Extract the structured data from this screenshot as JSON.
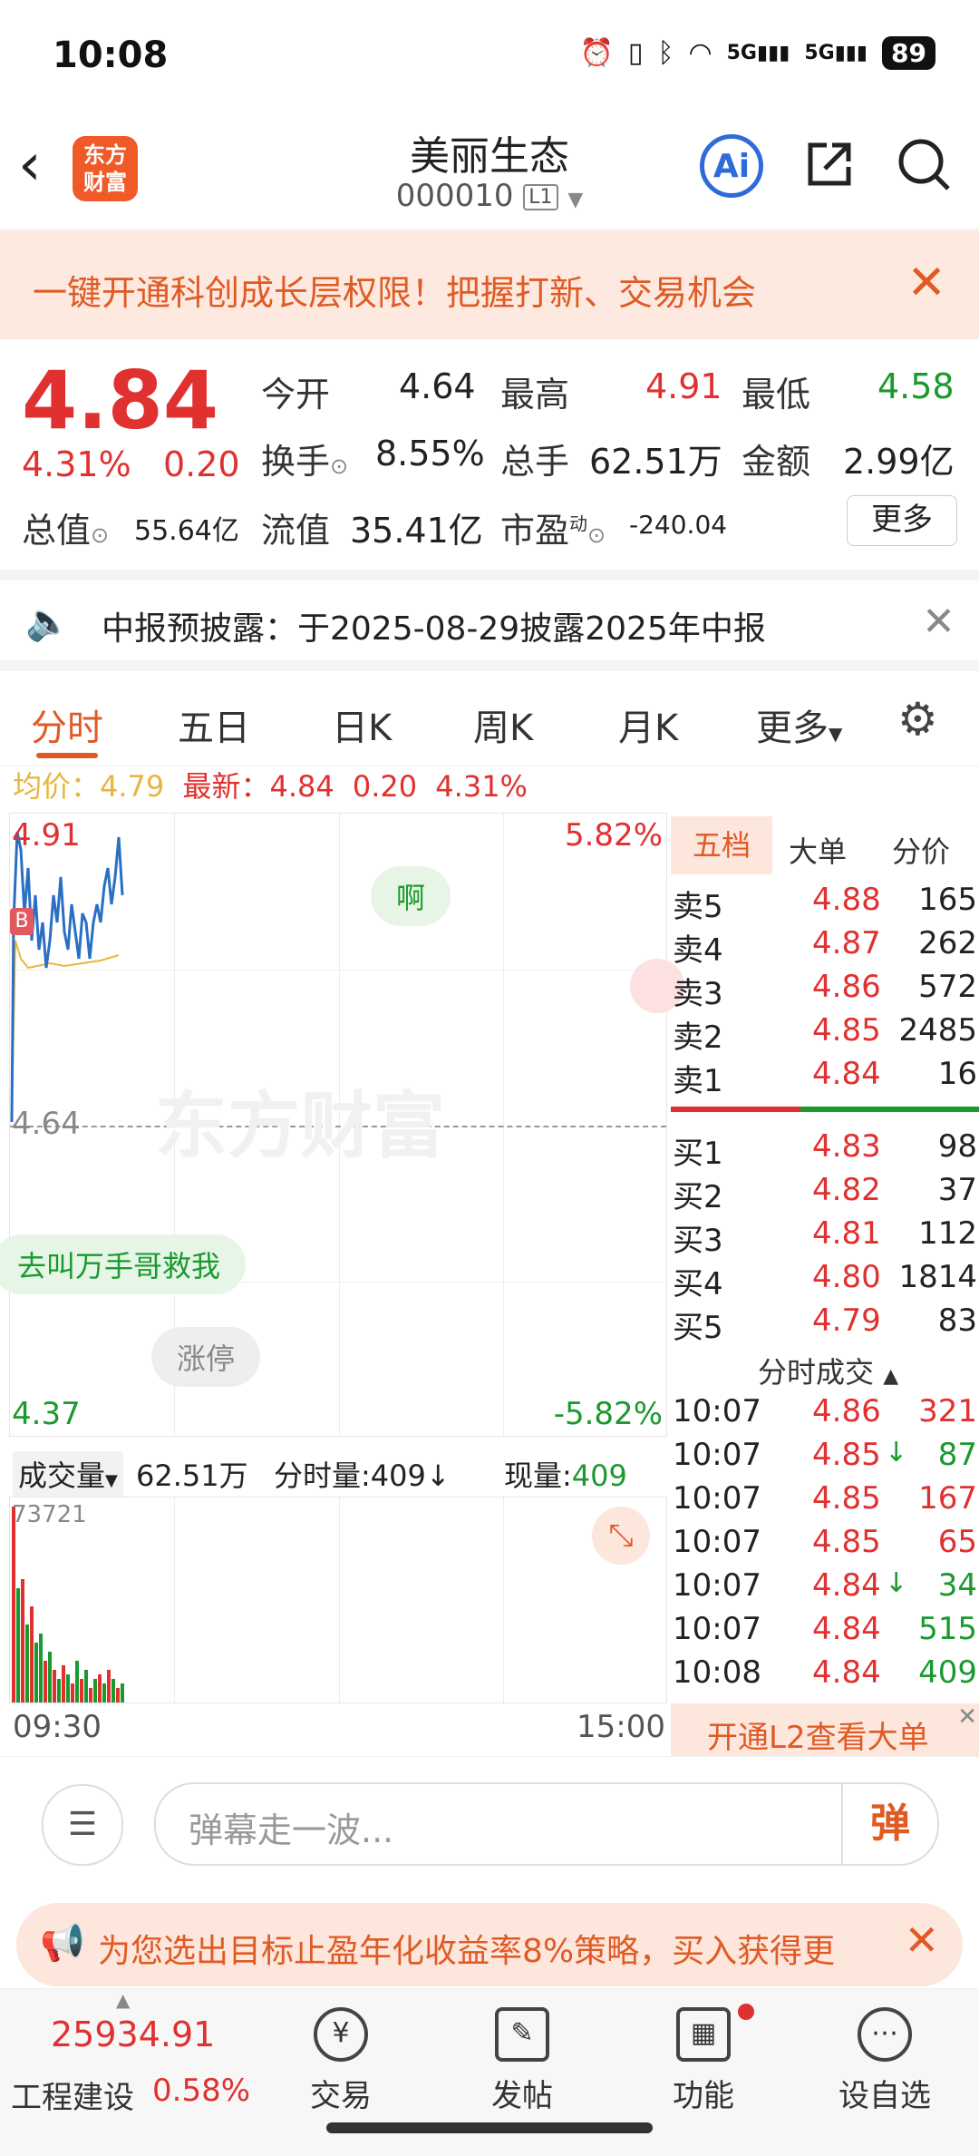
{
  "status_bar": {
    "time": "10:08",
    "battery": "89",
    "signal1": "5G",
    "signal2": "5G"
  },
  "header": {
    "logo_line1": "东方",
    "logo_line2": "财富",
    "title": "美丽生态",
    "code": "000010",
    "level": "L1",
    "ai_label": "Ai"
  },
  "banner": {
    "text": "一键开通科创成长层权限！把握打新、交易机会"
  },
  "quote": {
    "price": "4.84",
    "change_pct": "4.31%",
    "change": "0.20",
    "open_label": "今开",
    "open": "4.64",
    "high_label": "最高",
    "high": "4.91",
    "low_label": "最低",
    "low": "4.58",
    "turnover_label": "换手",
    "turnover": "8.55%",
    "volume_label": "总手",
    "volume": "62.51万",
    "amount_label": "金额",
    "amount": "2.99亿",
    "mcap_label": "总值",
    "mcap": "55.64亿",
    "float_label": "流值",
    "float": "35.41亿",
    "pe_label": "市盈",
    "pe_sup": "动",
    "pe": "-240.04",
    "more": "更多"
  },
  "notice": {
    "text": "中报预披露：于2025-08-29披露2025年中报"
  },
  "tabs": [
    "分时",
    "五日",
    "日K",
    "周K",
    "月K",
    "更多"
  ],
  "info_line": {
    "avg_label": "均价：",
    "avg": "4.79",
    "latest_label": "最新：",
    "latest": "4.84",
    "chg": "0.20",
    "pct": "4.31%"
  },
  "chart": {
    "top_price": "4.91",
    "top_pct": "5.82%",
    "mid_price": "4.64",
    "bottom_price": "4.37",
    "bottom_pct": "-5.82%",
    "watermark": "东方财富",
    "bubble1": "啊",
    "bubble2": "去叫万手哥救我",
    "bubble3": "涨停",
    "marker": "B",
    "time_start": "09:30",
    "time_end": "15:00"
  },
  "volume_bar": {
    "label": "成交量",
    "total": "62.51万",
    "tick_label": "分时量:409",
    "arrow": "↓",
    "now_label": "现量:",
    "now": "409",
    "max": "73721"
  },
  "order_book": {
    "tabs": [
      "五档",
      "大单",
      "分价"
    ],
    "sells": [
      {
        "label": "卖5",
        "price": "4.88",
        "vol": "165"
      },
      {
        "label": "卖4",
        "price": "4.87",
        "vol": "262"
      },
      {
        "label": "卖3",
        "price": "4.86",
        "vol": "572"
      },
      {
        "label": "卖2",
        "price": "4.85",
        "vol": "2485"
      },
      {
        "label": "卖1",
        "price": "4.84",
        "vol": "16"
      }
    ],
    "buys": [
      {
        "label": "买1",
        "price": "4.83",
        "vol": "98"
      },
      {
        "label": "买2",
        "price": "4.82",
        "vol": "37"
      },
      {
        "label": "买3",
        "price": "4.81",
        "vol": "112"
      },
      {
        "label": "买4",
        "price": "4.80",
        "vol": "1814"
      },
      {
        "label": "买5",
        "price": "4.79",
        "vol": "83"
      }
    ],
    "ticks_title": "分时成交",
    "ticks": [
      {
        "time": "10:07",
        "price": "4.86",
        "vol": "321",
        "dir": "",
        "up": true
      },
      {
        "time": "10:07",
        "price": "4.85",
        "vol": "87",
        "dir": "↓",
        "up": false
      },
      {
        "time": "10:07",
        "price": "4.85",
        "vol": "167",
        "dir": "",
        "up": true
      },
      {
        "time": "10:07",
        "price": "4.85",
        "vol": "65",
        "dir": "",
        "up": true
      },
      {
        "time": "10:07",
        "price": "4.84",
        "vol": "34",
        "dir": "↓",
        "up": false
      },
      {
        "time": "10:07",
        "price": "4.84",
        "vol": "515",
        "dir": "",
        "up": false
      },
      {
        "time": "10:08",
        "price": "4.84",
        "vol": "409",
        "dir": "",
        "up": false
      }
    ],
    "l2_cta": "开通L2查看大单"
  },
  "input_bar": {
    "placeholder": "弹幕走一波...",
    "send_label": "弹"
  },
  "promo": {
    "text": "为您选出目标止盈年化收益率8%策略，买入获得更"
  },
  "nav": {
    "index_value": "25934.91",
    "index_name": "工程建设",
    "index_pct": "0.58%",
    "items": [
      {
        "label": "交易",
        "icon": "yen-icon"
      },
      {
        "label": "发帖",
        "icon": "edit-icon"
      },
      {
        "label": "功能",
        "icon": "grid-icon"
      },
      {
        "label": "设自选",
        "icon": "more-icon"
      }
    ]
  },
  "colors": {
    "up": "#e0302f",
    "down": "#1a9a2e",
    "accent": "#e05a24",
    "line": "#2a6fc4",
    "avg_line": "#e6b640"
  }
}
